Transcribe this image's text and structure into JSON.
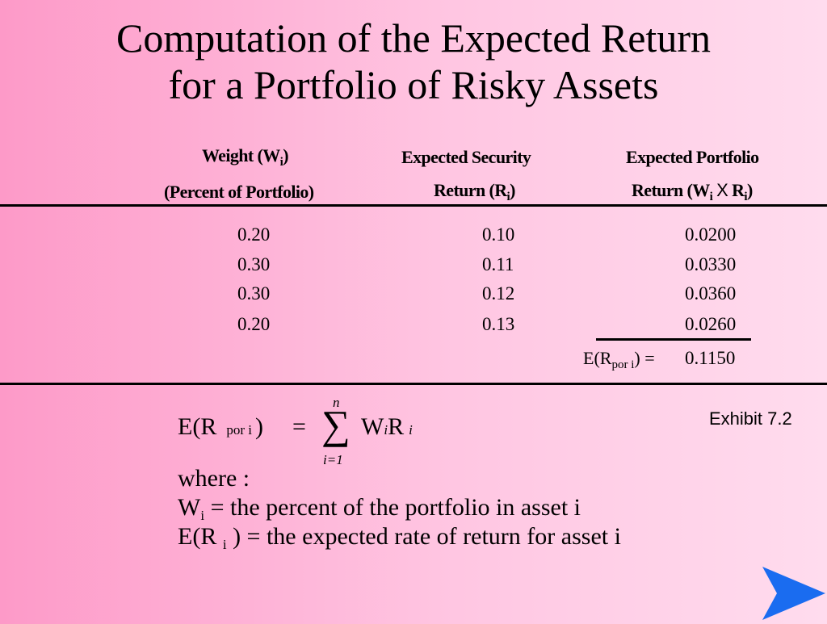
{
  "title": {
    "line1": "Computation of the Expected Return",
    "line2": "for a Portfolio of Risky Assets"
  },
  "headers": {
    "weight_line1_pre": "Weight (W",
    "weight_line1_sub": "i",
    "weight_line1_post": ")",
    "weight_line2": "(Percent of Portfolio)",
    "security_line1": "Expected Security",
    "security_line2_pre": "Return (R",
    "security_line2_sub": "i",
    "security_line2_post": ")",
    "portfolio_line1": "Expected Portfolio",
    "portfolio_line2_pre": "Return (W",
    "portfolio_line2_sub1": "i",
    "portfolio_line2_x": "X",
    "portfolio_line2_mid": "R",
    "portfolio_line2_sub2": "i",
    "portfolio_line2_post": ")"
  },
  "rows": [
    {
      "weight": "0.20",
      "security_return": "0.10",
      "portfolio_return": "0.0200"
    },
    {
      "weight": "0.30",
      "security_return": "0.11",
      "portfolio_return": "0.0330"
    },
    {
      "weight": "0.30",
      "security_return": "0.12",
      "portfolio_return": "0.0360"
    },
    {
      "weight": "0.20",
      "security_return": "0.13",
      "portfolio_return": "0.0260"
    }
  ],
  "total": {
    "label_pre": "E(R",
    "label_sub": "por i",
    "label_post": ") =",
    "value": "0.1150"
  },
  "exhibit": "Exhibit 7.2",
  "formula": {
    "lhs_pre": "E(R",
    "lhs_sub": "por i",
    "lhs_post": ")",
    "equals": "=",
    "sigma": "∑",
    "upper": "n",
    "lower": "i=1",
    "w": "W",
    "w_sub": "i",
    "r": "R",
    "r_sub": "i",
    "where": "where :",
    "def1_pre": "W",
    "def1_sub": "i",
    "def1_text": "= the percent of the portfolio in asset i",
    "def2_pre": "E(R",
    "def2_sub": "i",
    "def2_text": ") = the expected rate of return for asset i"
  },
  "colors": {
    "background_left": "#fd9ac8",
    "background_right": "#ffdcee",
    "arrow": "#1a6cf0"
  },
  "icons": {
    "next": "arrow-right-icon"
  }
}
